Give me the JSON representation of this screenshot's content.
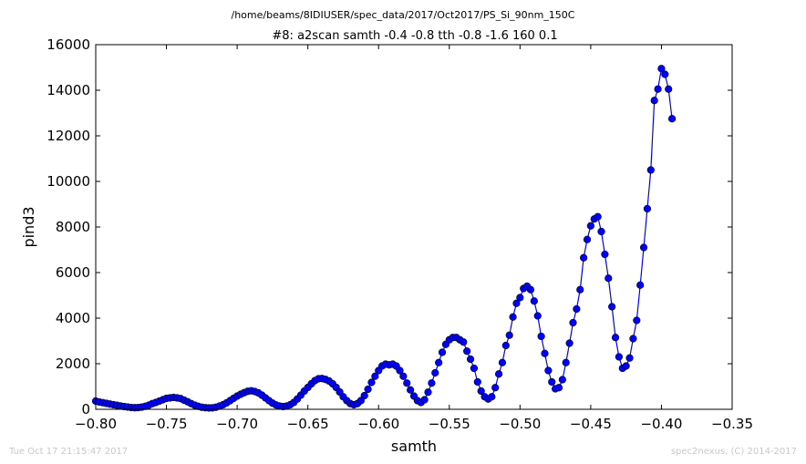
{
  "page": {
    "suptitle": "/home/beams/8IDIUSER/spec_data/2017/Oct2017/PS_Si_90nm_150C",
    "footer_left": "Tue Oct 17 21:15:47 2017",
    "footer_right": "spec2nexus, (C) 2014-2017"
  },
  "chart_data": {
    "type": "line",
    "title": "#8: a2scan  samth -0.4 -0.8  tth -0.8 -1.6  160 0.1",
    "xlabel": "samth",
    "ylabel": "pind3",
    "xlim": [
      -0.8,
      -0.35
    ],
    "ylim": [
      0,
      16000
    ],
    "xticks": [
      -0.8,
      -0.75,
      -0.7,
      -0.65,
      -0.6,
      -0.55,
      -0.5,
      -0.45,
      -0.4,
      -0.35
    ],
    "xtick_labels": [
      "−0.80",
      "−0.75",
      "−0.70",
      "−0.65",
      "−0.60",
      "−0.55",
      "−0.50",
      "−0.45",
      "−0.40",
      "−0.35"
    ],
    "yticks": [
      0,
      2000,
      4000,
      6000,
      8000,
      10000,
      12000,
      14000,
      16000
    ],
    "ytick_labels": [
      "0",
      "2000",
      "4000",
      "6000",
      "8000",
      "10000",
      "12000",
      "14000",
      "16000"
    ],
    "grid": false,
    "line_color": "#0000ff",
    "marker_color": "#0000ff",
    "series": [
      {
        "x_start": -0.8,
        "x_step": 0.0025,
        "values": [
          360,
          320,
          290,
          260,
          230,
          200,
          175,
          145,
          120,
          100,
          80,
          70,
          75,
          95,
          130,
          180,
          250,
          300,
          360,
          420,
          480,
          500,
          520,
          500,
          470,
          400,
          330,
          250,
          180,
          130,
          90,
          70,
          60,
          65,
          90,
          140,
          200,
          280,
          380,
          480,
          580,
          660,
          730,
          790,
          810,
          780,
          720,
          620,
          500,
          380,
          270,
          190,
          140,
          120,
          140,
          200,
          300,
          450,
          620,
          800,
          960,
          1120,
          1260,
          1340,
          1350,
          1310,
          1240,
          1120,
          960,
          760,
          550,
          380,
          250,
          200,
          250,
          380,
          600,
          880,
          1180,
          1450,
          1700,
          1900,
          1980,
          1950,
          1980,
          1900,
          1700,
          1450,
          1150,
          850,
          580,
          380,
          300,
          420,
          750,
          1150,
          1600,
          2050,
          2500,
          2850,
          3050,
          3150,
          3150,
          3050,
          2950,
          2550,
          2200,
          1800,
          1200,
          800,
          550,
          450,
          550,
          950,
          1550,
          2050,
          2800,
          3250,
          4050,
          4650,
          4900,
          5300,
          5400,
          5250,
          4750,
          4100,
          3200,
          2450,
          1700,
          1200,
          900,
          950,
          1300,
          2050,
          2900,
          3800,
          4400,
          5250,
          6650,
          7450,
          8050,
          8350,
          8450,
          7800,
          6800,
          5750,
          4500,
          3150,
          2300,
          1800,
          1900,
          2250,
          3100,
          3900,
          5450,
          7100,
          8800,
          10500,
          13550,
          14050,
          14950,
          14700,
          14050,
          12750
        ]
      }
    ]
  }
}
